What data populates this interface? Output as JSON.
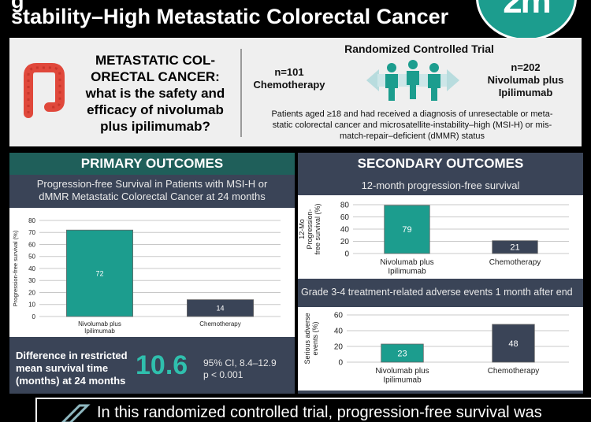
{
  "header": {
    "title_line1": "g",
    "title_line2": "stability–High Metastatic Colorectal Cancer",
    "logo_text": "2m",
    "colors": {
      "logo": "#1c9d8e",
      "background": "#000000"
    }
  },
  "intro": {
    "question_lines": [
      "METASTATIC COL-",
      "ORECTAL CANCER:",
      "what is the safety and",
      "efficacy of nivolumab",
      "plus ipilimumab?"
    ],
    "trial_title": "Randomized Controlled Trial",
    "arm1_n": "n=101",
    "arm1_name": "Chemotherapy",
    "arm2_n": "n=202",
    "arm2_name_line1": "Nivolumab plus",
    "arm2_name_line2": "Ipilimumab",
    "eligibility_line1": "Patients aged ≥18 and had received a diagnosis of unresectable or meta-",
    "eligibility_line2": "static colorectal cancer and microsatellite-instability–high (MSI-H) or mis-",
    "eligibility_line3": "match-repair–deficient (dMMR) status",
    "icons": [
      "colon-icon",
      "people-icon"
    ]
  },
  "primary": {
    "header": "PRIMARY OUTCOMES",
    "subtitle_line1": "Progression-free Survival in Patients with MSI-H or",
    "subtitle_line2": "dMMR Metastatic Colorectal Cancer at 24 months",
    "diff_label_line1": "Difference in restricted",
    "diff_label_line2": "mean survival time",
    "diff_label_line3": "(months) at 24 months",
    "diff_value": "10.6",
    "ci_text": "95% CI, 8.4–12.9",
    "p_text": "p < 0.001"
  },
  "secondary": {
    "header": "SECONDARY OUTCOMES",
    "chart1_title": "12-month progression-free survival",
    "chart2_title": "Grade 3-4 treatment-related adverse events 1 month after end"
  },
  "conclusion": {
    "text": "In this randomized controlled trial, progression-free survival was"
  },
  "chart_data": [
    {
      "id": "primary",
      "type": "bar",
      "categories": [
        "Nivolumab plus\nIpilimumab",
        "Chemotherapy"
      ],
      "values": [
        72,
        14
      ],
      "ylabel": "Progression-free survival (%)",
      "ylim": [
        0,
        80
      ],
      "yticks": [
        0,
        10,
        20,
        30,
        40,
        50,
        60,
        70,
        80
      ],
      "colors": [
        "#1c9d8e",
        "#3a4457"
      ],
      "grid": true
    },
    {
      "id": "secondary1",
      "type": "bar",
      "categories": [
        "Nivolumab plus\nIpilimumab",
        "Chemotherapy"
      ],
      "values": [
        79,
        21
      ],
      "ylabel": "12-Mo\nProgression-\nfree survival (%)",
      "ylim": [
        0,
        80
      ],
      "yticks": [
        0,
        20,
        40,
        60,
        80
      ],
      "colors": [
        "#1c9d8e",
        "#3a4457"
      ],
      "grid": true
    },
    {
      "id": "secondary2",
      "type": "bar",
      "categories": [
        "Nivolumab plus\nIpilimumab",
        "Chemotherapy"
      ],
      "values": [
        23,
        48
      ],
      "ylabel": "Serious adverse\nevents (%)",
      "ylim": [
        0,
        60
      ],
      "yticks": [
        0,
        20,
        40,
        60
      ],
      "colors": [
        "#1c9d8e",
        "#3a4457"
      ],
      "grid": true
    }
  ]
}
